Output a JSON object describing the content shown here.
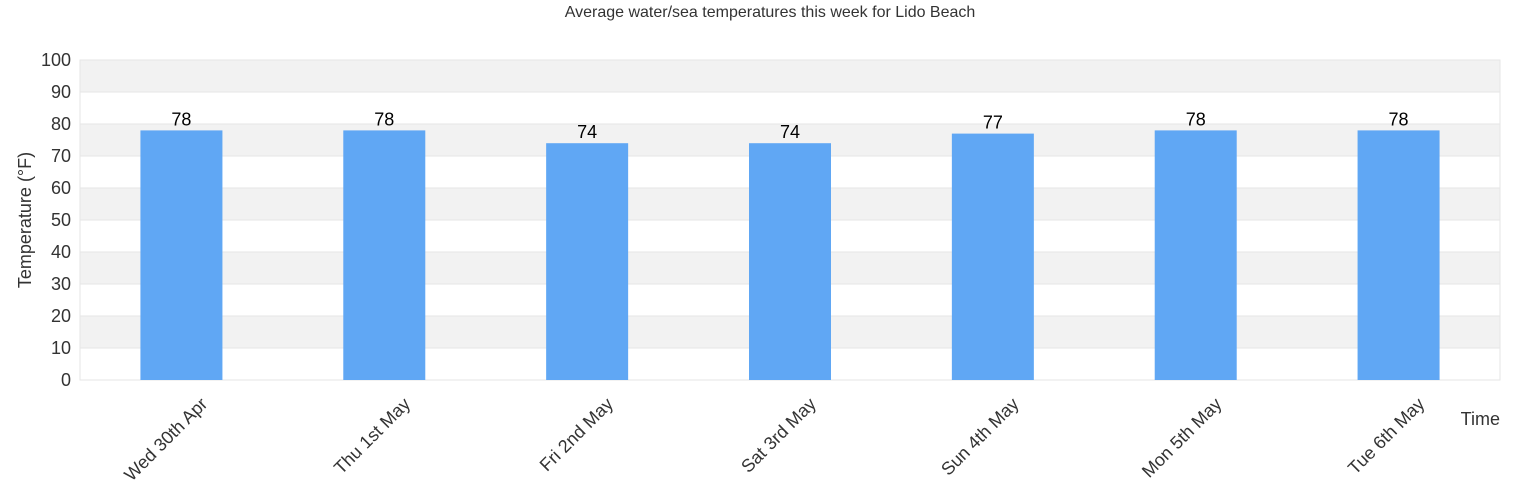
{
  "chart_data": {
    "type": "bar",
    "title": "Average water/sea temperatures this week for Lido Beach",
    "xlabel": "Time",
    "ylabel": "Temperature (°F)",
    "categories": [
      "Wed 30th Apr",
      "Thu 1st May",
      "Fri 2nd May",
      "Sat 3rd May",
      "Sun 4th May",
      "Mon 5th May",
      "Tue 6th May"
    ],
    "values": [
      78,
      78,
      74,
      74,
      77,
      78,
      78
    ],
    "ylim": [
      0,
      100
    ],
    "yticks": [
      0,
      10,
      20,
      30,
      40,
      50,
      60,
      70,
      80,
      90,
      100
    ],
    "grid": true,
    "legend": "none",
    "colors": {
      "bar": "#60a7f4",
      "band_alt": "#f2f2f2",
      "band": "#ffffff",
      "grid": "#e6e6e6",
      "axis": "#cccccc",
      "text": "#333333"
    }
  }
}
